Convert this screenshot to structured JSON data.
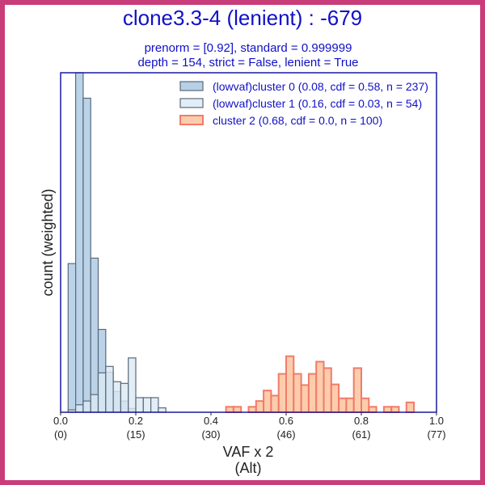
{
  "chart_data": {
    "type": "histogram",
    "title": "clone3.3-4 (lenient) : -679",
    "subtitle_lines": [
      "prenorm = [0.92], standard = 0.999999",
      "depth = 154, strict = False, lenient = True"
    ],
    "xlabel_lines": [
      "VAF x 2",
      "(Alt)"
    ],
    "ylabel": "count (weighted)",
    "xlim": [
      0.0,
      1.0
    ],
    "ylim": [
      0,
      10.0
    ],
    "bin_width": 0.02,
    "x_ticks": [
      {
        "value": 0.0,
        "label": "0.0",
        "sublabel": "(0)"
      },
      {
        "value": 0.2,
        "label": "0.2",
        "sublabel": "(15)"
      },
      {
        "value": 0.4,
        "label": "0.4",
        "sublabel": "(30)"
      },
      {
        "value": 0.6,
        "label": "0.6",
        "sublabel": "(46)"
      },
      {
        "value": 0.8,
        "label": "0.8",
        "sublabel": "(61)"
      },
      {
        "value": 1.0,
        "label": "1.0",
        "sublabel": "(77)"
      }
    ],
    "legend_position": "top-right",
    "series": [
      {
        "name": "(lowvaf)cluster 0 (0.08, cdf = 0.58, n = 237)",
        "fill": "#a4c4e0",
        "stroke": "#5a6a7a",
        "bins": [
          {
            "x": 0.02,
            "y": 4.38
          },
          {
            "x": 0.04,
            "y": 10.0
          },
          {
            "x": 0.06,
            "y": 9.25
          },
          {
            "x": 0.08,
            "y": 4.54
          },
          {
            "x": 0.1,
            "y": 2.44
          },
          {
            "x": 0.12,
            "y": 1.18
          },
          {
            "x": 0.14,
            "y": 0.61
          },
          {
            "x": 0.16,
            "y": 0.33
          },
          {
            "x": 0.18,
            "y": 0.11
          }
        ]
      },
      {
        "name": "(lowvaf)cluster 1 (0.16, cdf = 0.03, n = 54)",
        "fill": "#dce8f3",
        "stroke": "#5a6a7a",
        "bins": [
          {
            "x": 0.02,
            "y": 0.07
          },
          {
            "x": 0.04,
            "y": 0.22
          },
          {
            "x": 0.06,
            "y": 0.33
          },
          {
            "x": 0.08,
            "y": 0.52
          },
          {
            "x": 0.1,
            "y": 1.16
          },
          {
            "x": 0.12,
            "y": 1.35
          },
          {
            "x": 0.14,
            "y": 0.9
          },
          {
            "x": 0.16,
            "y": 0.85
          },
          {
            "x": 0.18,
            "y": 1.6
          },
          {
            "x": 0.2,
            "y": 0.43
          },
          {
            "x": 0.22,
            "y": 0.43
          },
          {
            "x": 0.24,
            "y": 0.43
          },
          {
            "x": 0.26,
            "y": 0.13
          }
        ]
      },
      {
        "name": "cluster 2 (0.68, cdf = 0.0, n = 100)",
        "fill": "#fbc49e",
        "stroke": "#f27a6a",
        "bins": [
          {
            "x": 0.44,
            "y": 0.16
          },
          {
            "x": 0.46,
            "y": 0.16
          },
          {
            "x": 0.5,
            "y": 0.16
          },
          {
            "x": 0.52,
            "y": 0.33
          },
          {
            "x": 0.54,
            "y": 0.64
          },
          {
            "x": 0.56,
            "y": 0.49
          },
          {
            "x": 0.58,
            "y": 1.13
          },
          {
            "x": 0.6,
            "y": 1.65
          },
          {
            "x": 0.62,
            "y": 1.13
          },
          {
            "x": 0.64,
            "y": 0.8
          },
          {
            "x": 0.66,
            "y": 1.13
          },
          {
            "x": 0.68,
            "y": 1.49
          },
          {
            "x": 0.7,
            "y": 1.3
          },
          {
            "x": 0.72,
            "y": 0.82
          },
          {
            "x": 0.74,
            "y": 0.41
          },
          {
            "x": 0.76,
            "y": 0.41
          },
          {
            "x": 0.78,
            "y": 1.3
          },
          {
            "x": 0.8,
            "y": 0.41
          },
          {
            "x": 0.82,
            "y": 0.16
          },
          {
            "x": 0.86,
            "y": 0.16
          },
          {
            "x": 0.88,
            "y": 0.16
          },
          {
            "x": 0.92,
            "y": 0.29
          }
        ]
      }
    ]
  }
}
